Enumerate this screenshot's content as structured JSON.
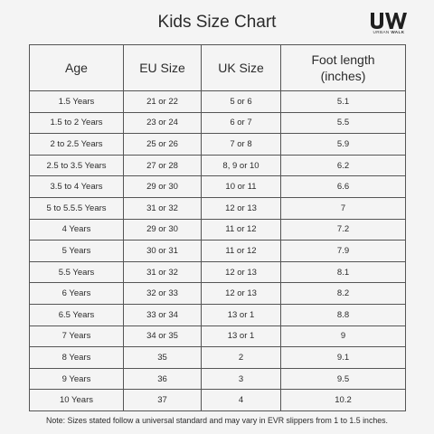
{
  "title": "Kids Size Chart",
  "logo": {
    "mark": "UW",
    "sub_light": "URBAN",
    "sub_bold": "WALK"
  },
  "table": {
    "headers": [
      "Age",
      "EU Size",
      "UK Size",
      "Foot length (inches)"
    ],
    "rows": [
      [
        "1.5 Years",
        "21 or 22",
        "5 or 6",
        "5.1"
      ],
      [
        "1.5 to 2 Years",
        "23 or 24",
        "6 or 7",
        "5.5"
      ],
      [
        "2 to 2.5 Years",
        "25 or 26",
        "7 or 8",
        "5.9"
      ],
      [
        "2.5 to 3.5 Years",
        "27 or 28",
        "8, 9 or 10",
        "6.2"
      ],
      [
        "3.5 to 4 Years",
        "29 or 30",
        "10 or 11",
        "6.6"
      ],
      [
        "5 to 5.5.5 Years",
        "31 or 32",
        "12 or 13",
        "7"
      ],
      [
        "4 Years",
        "29 or 30",
        "11 or 12",
        "7.2"
      ],
      [
        "5 Years",
        "30 or 31",
        "11 or 12",
        "7.9"
      ],
      [
        "5.5 Years",
        "31 or 32",
        "12 or 13",
        "8.1"
      ],
      [
        "6 Years",
        "32 or 33",
        "12 or 13",
        "8.2"
      ],
      [
        "6.5 Years",
        "33 or 34",
        "13 or 1",
        "8.8"
      ],
      [
        "7 Years",
        "34 or 35",
        "13 or 1",
        "9"
      ],
      [
        "8 Years",
        "35",
        "2",
        "9.1"
      ],
      [
        "9 Years",
        "36",
        "3",
        "9.5"
      ],
      [
        "10 Years",
        "37",
        "4",
        "10.2"
      ]
    ]
  },
  "note": "Note: Sizes stated follow a universal standard and may vary in EVR slippers from 1 to 1.5 inches."
}
